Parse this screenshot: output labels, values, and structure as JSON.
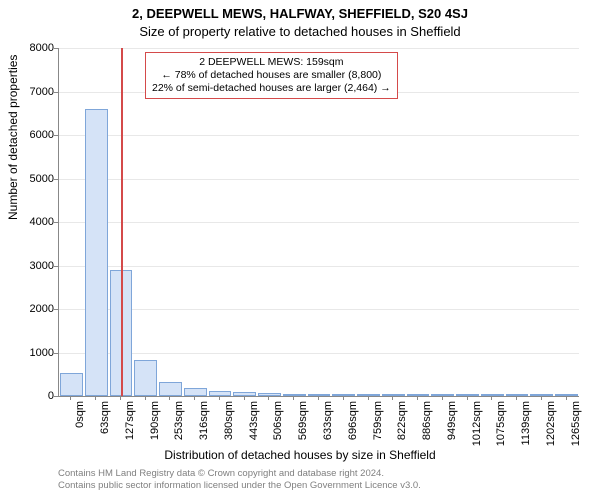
{
  "header": {
    "title": "2, DEEPWELL MEWS, HALFWAY, SHEFFIELD, S20 4SJ",
    "subtitle": "Size of property relative to detached houses in Sheffield"
  },
  "chart": {
    "type": "histogram",
    "ylabel": "Number of detached properties",
    "xlabel": "Distribution of detached houses by size in Sheffield",
    "ylim": [
      0,
      8000
    ],
    "ytick_step": 1000,
    "background_color": "#ffffff",
    "grid_color": "#e8e8e8",
    "axis_color": "#888888",
    "bar_fill": "#d5e3f7",
    "bar_border": "#7fa6d9",
    "ref_line_color": "#d44a4a",
    "ref_value": 159,
    "categories": [
      "0sqm",
      "63sqm",
      "127sqm",
      "190sqm",
      "253sqm",
      "316sqm",
      "380sqm",
      "443sqm",
      "506sqm",
      "569sqm",
      "633sqm",
      "696sqm",
      "759sqm",
      "822sqm",
      "886sqm",
      "949sqm",
      "1012sqm",
      "1075sqm",
      "1139sqm",
      "1202sqm",
      "1265sqm"
    ],
    "values": [
      520,
      6600,
      2900,
      820,
      320,
      180,
      120,
      90,
      60,
      50,
      40,
      30,
      25,
      20,
      18,
      15,
      12,
      10,
      8,
      6,
      5
    ],
    "annotation": {
      "lines": [
        "2 DEEPWELL MEWS: 159sqm",
        "← 78% of detached houses are smaller (8,800)",
        "22% of semi-detached houses are larger (2,464) →"
      ],
      "border_color": "#d44a4a"
    }
  },
  "credits": {
    "line1": "Contains HM Land Registry data © Crown copyright and database right 2024.",
    "line2": "Contains public sector information licensed under the Open Government Licence v3.0."
  }
}
